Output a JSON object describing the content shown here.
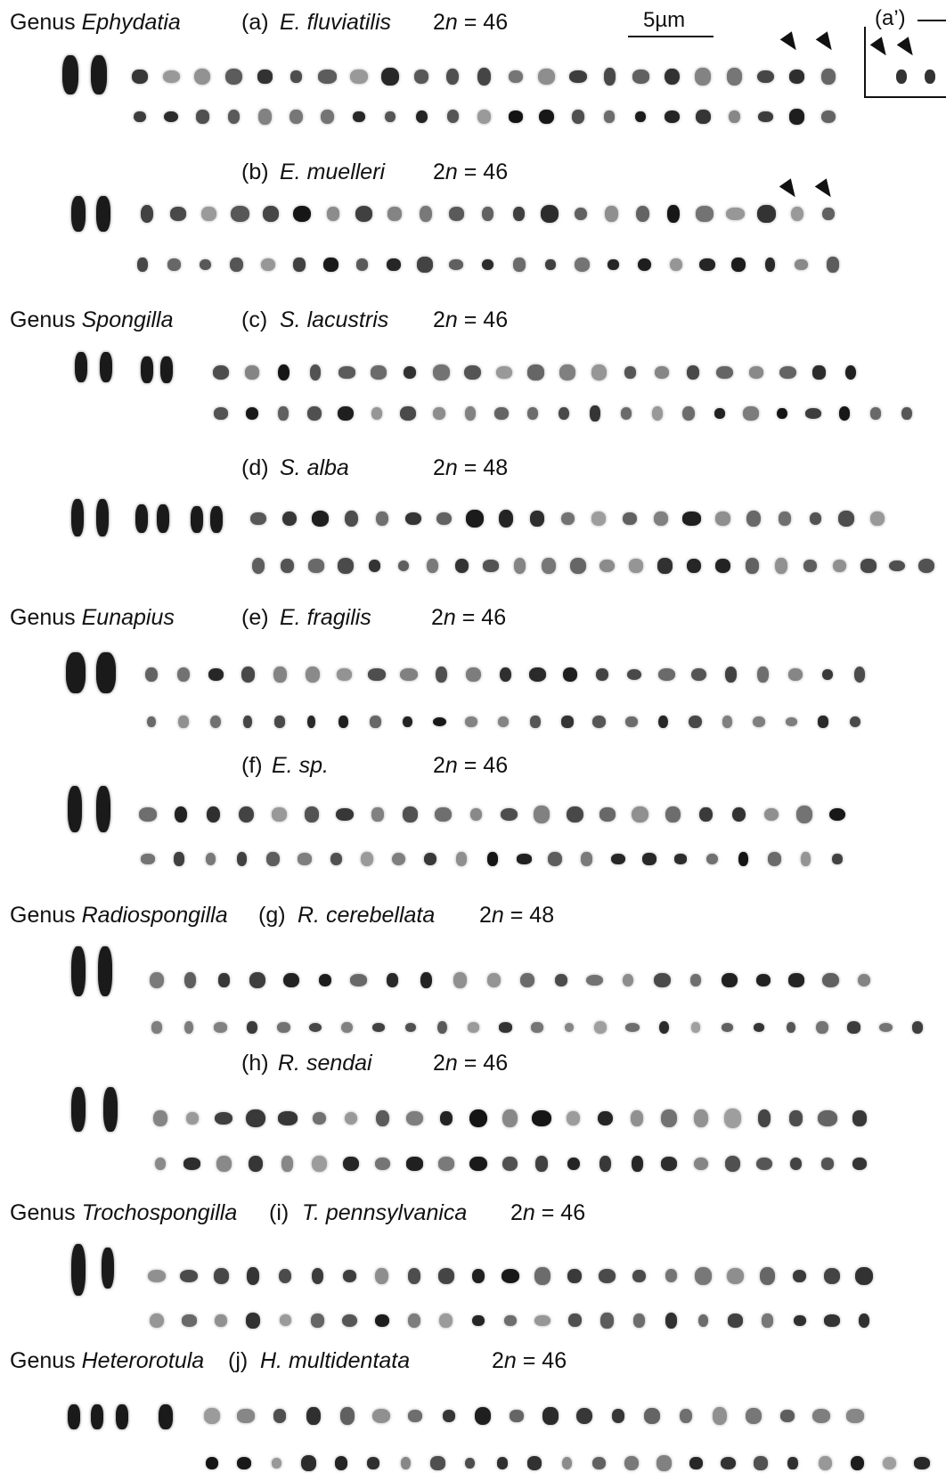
{
  "scale": {
    "label": "5µm"
  },
  "inset": {
    "label": "(a’)"
  },
  "panels": [
    {
      "genus_prefix": "Genus",
      "genus": "Ephydatia",
      "letter": "(a)",
      "species": "E. fluviatilis",
      "chrom_prefix": "2",
      "chrom_n": "n",
      "chrom_value": "= 46"
    },
    {
      "genus_prefix": "",
      "genus": "",
      "letter": "(b)",
      "species": "E. muelleri",
      "chrom_prefix": "2",
      "chrom_n": "n",
      "chrom_value": "= 46"
    },
    {
      "genus_prefix": "Genus",
      "genus": "Spongilla",
      "letter": "(c)",
      "species": "S. lacustris",
      "chrom_prefix": "2",
      "chrom_n": "n",
      "chrom_value": "= 46"
    },
    {
      "genus_prefix": "",
      "genus": "",
      "letter": "(d)",
      "species": "S. alba",
      "chrom_prefix": "2",
      "chrom_n": "n",
      "chrom_value": "= 48"
    },
    {
      "genus_prefix": "Genus",
      "genus": "Eunapius",
      "letter": "(e)",
      "species": "E. fragilis",
      "chrom_prefix": "2",
      "chrom_n": "n",
      "chrom_value": "= 46"
    },
    {
      "genus_prefix": "",
      "genus": "",
      "letter": "(f)",
      "species": "E. sp.",
      "chrom_prefix": "2",
      "chrom_n": "n",
      "chrom_value": "= 46"
    },
    {
      "genus_prefix": "Genus",
      "genus": "Radiospongilla",
      "letter": "(g)",
      "species": "R. cerebellata",
      "chrom_prefix": "2",
      "chrom_n": "n",
      "chrom_value": "= 48"
    },
    {
      "genus_prefix": "",
      "genus": "",
      "letter": "(h)",
      "species": "R. sendai",
      "chrom_prefix": "2",
      "chrom_n": "n",
      "chrom_value": "= 46"
    },
    {
      "genus_prefix": "Genus",
      "genus": "Trochospongilla",
      "letter": "(i)",
      "species": "T. pennsylvanica",
      "chrom_prefix": "2",
      "chrom_n": "n",
      "chrom_value": "= 46"
    },
    {
      "genus_prefix": "Genus",
      "genus": "Heterorotula",
      "letter": "(j)",
      "species": "H. multidentata",
      "chrom_prefix": "2",
      "chrom_n": "n",
      "chrom_value": "= 46"
    }
  ]
}
